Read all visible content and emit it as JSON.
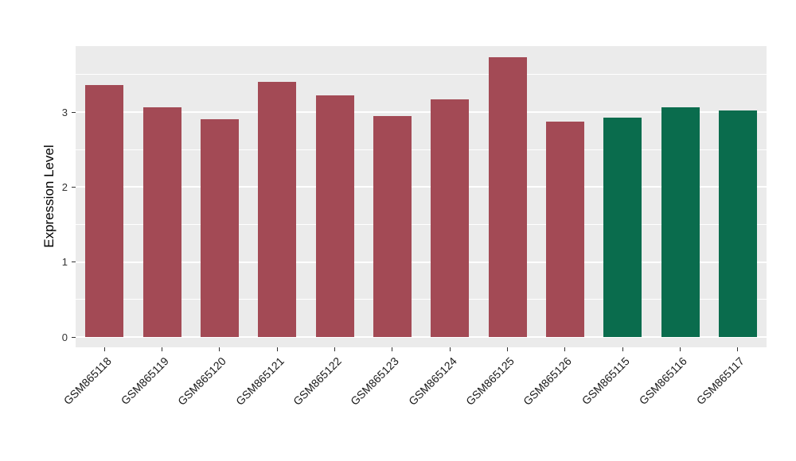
{
  "chart_data": {
    "type": "bar",
    "title": "",
    "xlabel": "",
    "ylabel": "Expression Level",
    "categories": [
      "GSM865118",
      "GSM865119",
      "GSM865120",
      "GSM865121",
      "GSM865122",
      "GSM865123",
      "GSM865124",
      "GSM865125",
      "GSM865126",
      "GSM865115",
      "GSM865116",
      "GSM865117"
    ],
    "values": [
      3.36,
      3.06,
      2.91,
      3.4,
      3.22,
      2.95,
      3.17,
      3.73,
      2.87,
      2.93,
      3.06,
      3.02
    ],
    "bar_colors": [
      "#A34A55",
      "#A34A55",
      "#A34A55",
      "#A34A55",
      "#A34A55",
      "#A34A55",
      "#A34A55",
      "#A34A55",
      "#A34A55",
      "#0A6C4D",
      "#0A6C4D",
      "#0A6C4D"
    ],
    "yticks": [
      "0",
      "1",
      "2",
      "3"
    ],
    "ytick_values": [
      0,
      1,
      2,
      3
    ],
    "minor_tick_values": [
      0.5,
      1.5,
      2.5,
      3.5
    ],
    "ylim": [
      0,
      3.88
    ],
    "legend": "none",
    "grid": "on",
    "colors": {
      "group_red": "#A34A55",
      "group_green": "#0A6C4D",
      "panel_background": "#EBEBEB",
      "gridline": "#FFFFFF"
    }
  }
}
